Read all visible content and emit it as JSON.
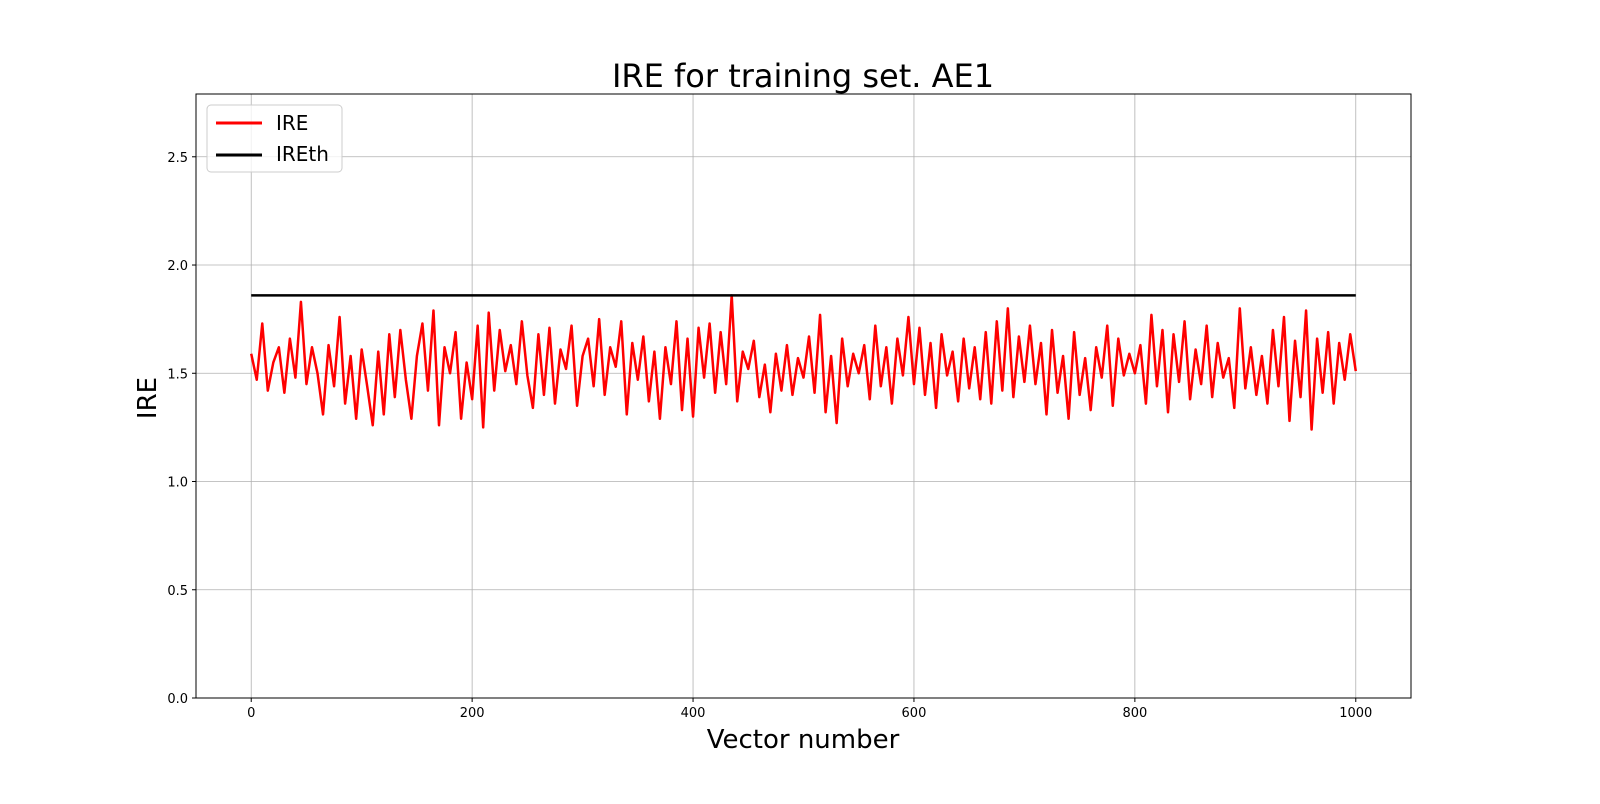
{
  "chart_data": {
    "type": "line",
    "title": "IRE for training set. AE1",
    "xlabel": "Vector number",
    "ylabel": "IRE",
    "xlim": [
      -50,
      1050
    ],
    "ylim": [
      0,
      2.79
    ],
    "x_ticks": [
      0,
      200,
      400,
      600,
      800,
      1000
    ],
    "y_ticks": [
      "0.0",
      "0.5",
      "1.0",
      "1.5",
      "2.0",
      "2.5"
    ],
    "grid": true,
    "legend_position": "top-left",
    "series": [
      {
        "name": "IRE",
        "color": "#ff0000",
        "x_start": 0,
        "x_step": 5,
        "values": [
          1.59,
          1.47,
          1.73,
          1.42,
          1.55,
          1.62,
          1.41,
          1.66,
          1.48,
          1.83,
          1.45,
          1.62,
          1.5,
          1.31,
          1.63,
          1.44,
          1.76,
          1.36,
          1.58,
          1.29,
          1.61,
          1.44,
          1.26,
          1.6,
          1.31,
          1.68,
          1.39,
          1.7,
          1.47,
          1.29,
          1.58,
          1.73,
          1.42,
          1.79,
          1.26,
          1.62,
          1.5,
          1.69,
          1.29,
          1.55,
          1.38,
          1.72,
          1.25,
          1.78,
          1.42,
          1.7,
          1.51,
          1.63,
          1.45,
          1.74,
          1.49,
          1.34,
          1.68,
          1.4,
          1.71,
          1.36,
          1.61,
          1.52,
          1.72,
          1.35,
          1.58,
          1.66,
          1.44,
          1.75,
          1.4,
          1.62,
          1.53,
          1.74,
          1.31,
          1.64,
          1.47,
          1.67,
          1.37,
          1.6,
          1.29,
          1.62,
          1.45,
          1.74,
          1.33,
          1.66,
          1.3,
          1.71,
          1.48,
          1.73,
          1.41,
          1.69,
          1.45,
          1.86,
          1.37,
          1.6,
          1.52,
          1.65,
          1.39,
          1.54,
          1.32,
          1.59,
          1.42,
          1.63,
          1.4,
          1.57,
          1.48,
          1.67,
          1.41,
          1.77,
          1.32,
          1.58,
          1.27,
          1.66,
          1.44,
          1.59,
          1.5,
          1.63,
          1.38,
          1.72,
          1.44,
          1.62,
          1.36,
          1.66,
          1.49,
          1.76,
          1.45,
          1.71,
          1.4,
          1.64,
          1.34,
          1.68,
          1.49,
          1.6,
          1.37,
          1.66,
          1.43,
          1.62,
          1.38,
          1.69,
          1.36,
          1.74,
          1.42,
          1.8,
          1.39,
          1.67,
          1.46,
          1.72,
          1.45,
          1.64,
          1.31,
          1.7,
          1.41,
          1.58,
          1.29,
          1.69,
          1.4,
          1.57,
          1.33,
          1.62,
          1.48,
          1.72,
          1.35,
          1.66,
          1.49,
          1.59,
          1.5,
          1.63,
          1.36,
          1.77,
          1.44,
          1.7,
          1.32,
          1.68,
          1.46,
          1.74,
          1.38,
          1.61,
          1.45,
          1.72,
          1.39,
          1.64,
          1.48,
          1.57,
          1.34,
          1.8,
          1.43,
          1.62,
          1.4,
          1.58,
          1.36,
          1.7,
          1.44,
          1.76,
          1.28,
          1.65,
          1.39,
          1.79,
          1.24,
          1.66,
          1.41,
          1.69,
          1.36,
          1.64,
          1.47,
          1.68,
          1.51
        ]
      },
      {
        "name": "IREth",
        "color": "#000000",
        "x": [
          0,
          1000
        ],
        "values": [
          1.86,
          1.86
        ]
      }
    ]
  }
}
